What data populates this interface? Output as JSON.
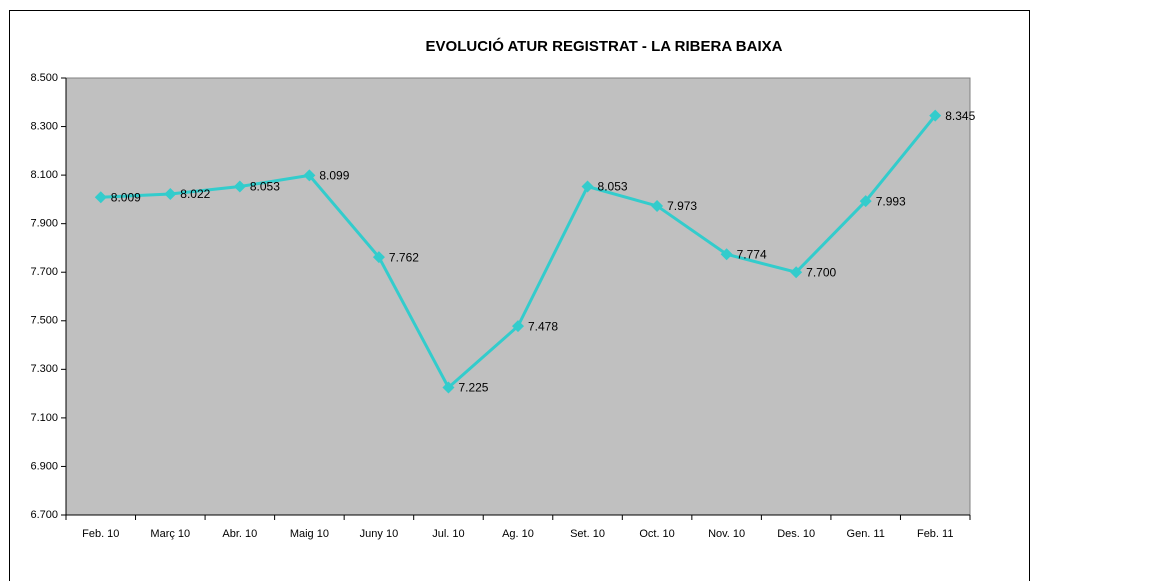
{
  "chart_data": {
    "type": "line",
    "title": "EVOLUCIÓ ATUR REGISTRAT - LA RIBERA BAIXA",
    "categories": [
      "Feb. 10",
      "Març 10",
      "Abr. 10",
      "Maig 10",
      "Juny 10",
      "Jul. 10",
      "Ag. 10",
      "Set. 10",
      "Oct. 10",
      "Nov. 10",
      "Des. 10",
      "Gen. 11",
      "Feb. 11"
    ],
    "series": [
      {
        "color": "#33cccc",
        "values": [
          8009,
          8022,
          8053,
          8099,
          7762,
          7225,
          7478,
          8053,
          7973,
          7774,
          7700,
          7993,
          8345
        ],
        "value_labels": [
          "8.009",
          "8.022",
          "8.053",
          "8.099",
          "7.762",
          "7.225",
          "7.478",
          "8.053",
          "7.973",
          "7.774",
          "7.700",
          "7.993",
          "8.345"
        ]
      }
    ],
    "ylim": [
      6700,
      8500
    ],
    "yticks": [
      {
        "value": 6700,
        "label": "6.700"
      },
      {
        "value": 6900,
        "label": "6.900"
      },
      {
        "value": 7100,
        "label": "7.100"
      },
      {
        "value": 7300,
        "label": "7.300"
      },
      {
        "value": 7500,
        "label": "7.500"
      },
      {
        "value": 7700,
        "label": "7.700"
      },
      {
        "value": 7900,
        "label": "7.900"
      },
      {
        "value": 8100,
        "label": "8.100"
      },
      {
        "value": 8300,
        "label": "8.300"
      },
      {
        "value": 8500,
        "label": "8.500"
      }
    ],
    "plot_background": "#c0c0c0"
  }
}
